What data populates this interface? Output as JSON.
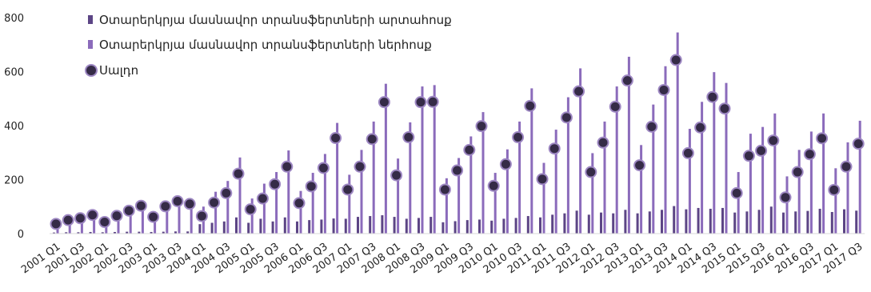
{
  "chart_data": {
    "type": "bar",
    "categories": [
      "2001 Q1",
      "2001 Q2",
      "2001 Q3",
      "2001 Q4",
      "2002 Q1",
      "2002 Q2",
      "2002 Q3",
      "2002 Q4",
      "2003 Q1",
      "2003 Q2",
      "2003 Q3",
      "2003 Q4",
      "2004 Q1",
      "2004 Q2",
      "2004 Q3",
      "2004 Q4",
      "2005 Q1",
      "2005 Q2",
      "2005 Q3",
      "2005 Q4",
      "2006 Q1",
      "2006 Q2",
      "2006 Q3",
      "2006 Q4",
      "2007 Q1",
      "2007 Q2",
      "2007 Q3",
      "2007 Q4",
      "2008 Q1",
      "2008 Q2",
      "2008 Q3",
      "2008 Q4",
      "2009 Q1",
      "2009 Q2",
      "2009 Q3",
      "2009 Q4",
      "2010 Q1",
      "2010 Q2",
      "2010 Q3",
      "2010 Q4",
      "2011 Q1",
      "2011 Q2",
      "2011 Q3",
      "2011 Q4",
      "2012 Q1",
      "2012 Q2",
      "2012 Q3",
      "2012 Q4",
      "2013 Q1",
      "2013 Q2",
      "2013 Q3",
      "2013 Q4",
      "2014 Q1",
      "2014 Q2",
      "2014 Q3",
      "2014 Q4",
      "2015 Q1",
      "2015 Q2",
      "2015 Q3",
      "2015 Q4",
      "2016 Q1",
      "2016 Q2",
      "2016 Q3",
      "2016 Q4",
      "2017 Q1",
      "2017 Q2",
      "2017 Q3"
    ],
    "x_tick_labels": [
      "2001 Q1",
      "2001 Q3",
      "2002 Q1",
      "2002 Q3",
      "2003 Q1",
      "2003 Q3",
      "2004 Q1",
      "2004 Q3",
      "2005 Q1",
      "2005 Q3",
      "2006 Q1",
      "2006 Q3",
      "2007 Q1",
      "2007 Q3",
      "2008 Q1",
      "2008 Q3",
      "2009 Q1",
      "2009 Q3",
      "2010 Q1",
      "2010 Q3",
      "2011 Q1",
      "2011 Q3",
      "2012 Q1",
      "2012 Q3",
      "2013 Q1",
      "2013 Q3",
      "2014 Q1",
      "2014 Q3",
      "2015 Q1",
      "2015 Q3",
      "2016 Q1",
      "2016 Q3",
      "2017 Q1",
      "2017 Q3"
    ],
    "y_ticks": [
      0,
      200,
      400,
      600,
      800
    ],
    "ylim": [
      0,
      800
    ],
    "title": "",
    "xlabel": "",
    "ylabel": "",
    "legend_position": "top-left",
    "series": [
      {
        "name": "Օտարերկրյա մասնավոր տրանսֆերտների արտահոսք",
        "type": "bar",
        "color": "#5c4585",
        "values": [
          4,
          5,
          5,
          6,
          5,
          6,
          7,
          7,
          6,
          7,
          8,
          8,
          35,
          40,
          45,
          60,
          40,
          55,
          45,
          60,
          45,
          50,
          52,
          56,
          55,
          62,
          65,
          68,
          62,
          55,
          58,
          62,
          42,
          46,
          50,
          52,
          48,
          55,
          58,
          65,
          60,
          70,
          75,
          85,
          70,
          78,
          75,
          88,
          75,
          82,
          88,
          102,
          90,
          95,
          92,
          95,
          78,
          82,
          88,
          100,
          78,
          82,
          84,
          92,
          80,
          90,
          85
        ]
      },
      {
        "name": "Օտարերկրյա մասնավոր տրանսֆերտների ներհոսք",
        "type": "bar",
        "color": "#8b6bbb",
        "values": [
          40,
          55,
          62,
          75,
          48,
          72,
          92,
          110,
          68,
          108,
          128,
          118,
          100,
          155,
          195,
          282,
          130,
          185,
          228,
          308,
          158,
          225,
          295,
          410,
          218,
          310,
          415,
          555,
          278,
          412,
          545,
          550,
          205,
          280,
          360,
          450,
          225,
          312,
          415,
          538,
          262,
          385,
          505,
          612,
          298,
          415,
          545,
          655,
          328,
          478,
          620,
          745,
          388,
          488,
          598,
          558,
          228,
          370,
          395,
          445,
          212,
          310,
          378,
          445,
          242,
          338,
          418
        ]
      },
      {
        "name": "Սալդո",
        "type": "scatter",
        "color": "#352b47",
        "values": [
          36,
          50,
          57,
          69,
          43,
          66,
          85,
          103,
          62,
          101,
          120,
          110,
          65,
          115,
          150,
          222,
          90,
          130,
          183,
          248,
          113,
          175,
          243,
          354,
          163,
          248,
          350,
          487,
          216,
          357,
          487,
          488,
          163,
          234,
          310,
          398,
          177,
          257,
          357,
          473,
          202,
          315,
          430,
          527,
          228,
          337,
          470,
          567,
          253,
          396,
          532,
          643,
          298,
          393,
          506,
          463,
          150,
          288,
          307,
          345,
          134,
          228,
          294,
          353,
          162,
          248,
          333
        ]
      }
    ]
  }
}
